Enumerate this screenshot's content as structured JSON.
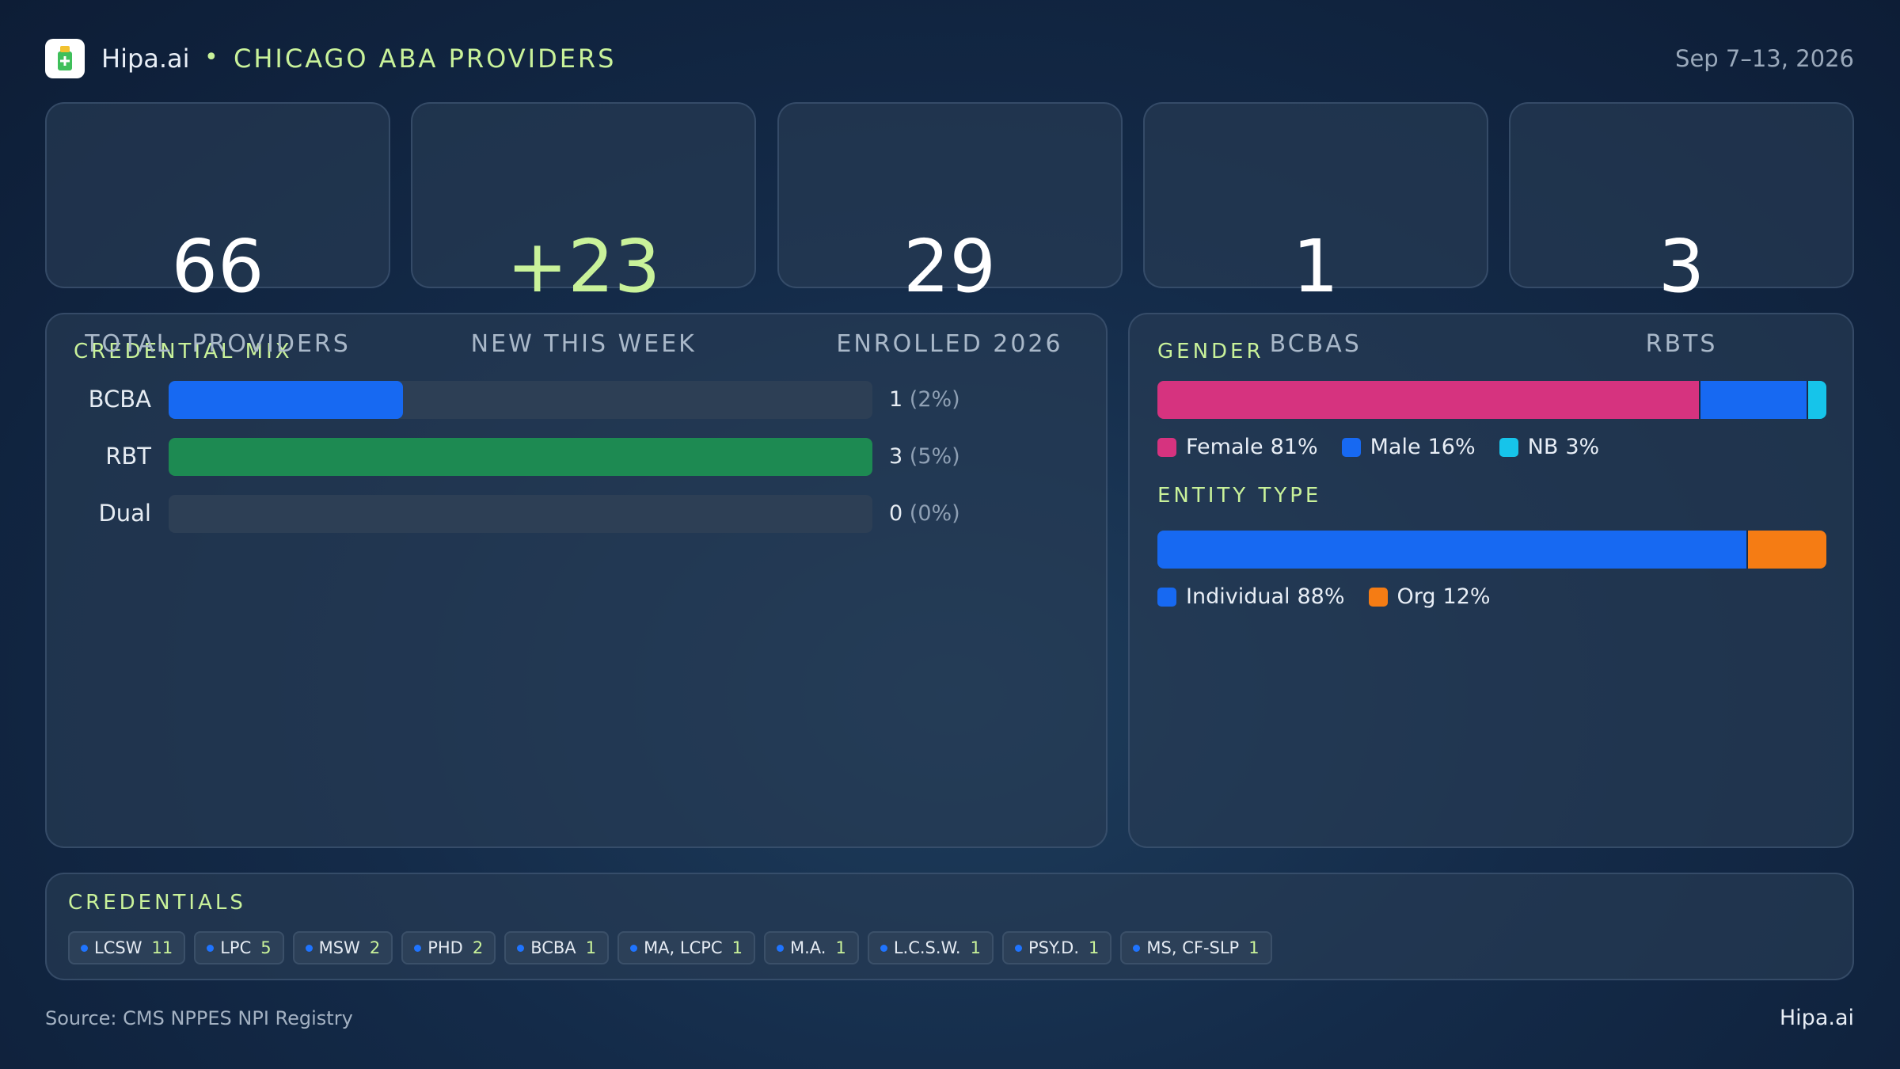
{
  "header": {
    "brand": "Hipa.ai",
    "separator": "•",
    "title": "CHICAGO ABA PROVIDERS",
    "date": "Sep 7–13, 2026"
  },
  "kpis": [
    {
      "value": "66",
      "label": "TOTAL  PROVIDERS"
    },
    {
      "value": "+23",
      "label": "NEW THIS WEEK",
      "accent": true
    },
    {
      "value": "29",
      "label": "ENROLLED 2026"
    },
    {
      "value": "1",
      "label": "BCBAS"
    },
    {
      "value": "3",
      "label": "RBTS"
    }
  ],
  "credential_mix": {
    "type": "bar",
    "title": "CREDENTIAL MIX",
    "categories": [
      "BCBA",
      "RBT",
      "Dual"
    ],
    "values": [
      1,
      3,
      0
    ],
    "percent_labels": [
      "(2%)",
      "(5%)",
      "(0%)"
    ],
    "colors": [
      "#1769f2",
      "#1d8a52",
      "#1769f2"
    ],
    "xlim": [
      0,
      3
    ]
  },
  "gender": {
    "type": "stacked_bar",
    "title": "GENDER",
    "categories": [
      "Female",
      "Male",
      "NB"
    ],
    "values": [
      81,
      16,
      3
    ],
    "value_labels": [
      "81%",
      "16%",
      "3%"
    ],
    "colors": [
      "#d6337f",
      "#1769f2",
      "#16c4ea"
    ],
    "xlim": [
      0,
      100
    ]
  },
  "entity_type": {
    "type": "stacked_bar",
    "title": "ENTITY TYPE",
    "categories": [
      "Individual",
      "Org"
    ],
    "values": [
      88,
      12
    ],
    "value_labels": [
      "88%",
      "12%"
    ],
    "colors": [
      "#1769f2",
      "#f57c14"
    ],
    "xlim": [
      0,
      100
    ]
  },
  "credentials": {
    "title": "CREDENTIALS",
    "items": [
      {
        "name": "LCSW",
        "count": 11
      },
      {
        "name": "LPC",
        "count": 5
      },
      {
        "name": "MSW",
        "count": 2
      },
      {
        "name": "PHD",
        "count": 2
      },
      {
        "name": "BCBA",
        "count": 1
      },
      {
        "name": "MA, LCPC",
        "count": 1
      },
      {
        "name": "M.A.",
        "count": 1
      },
      {
        "name": "L.C.S.W.",
        "count": 1
      },
      {
        "name": "PSY.D.",
        "count": 1
      },
      {
        "name": "MS, CF-SLP",
        "count": 1
      }
    ]
  },
  "footer": {
    "source": "Source: CMS NPPES NPI Registry",
    "brand": "Hipa.ai"
  }
}
